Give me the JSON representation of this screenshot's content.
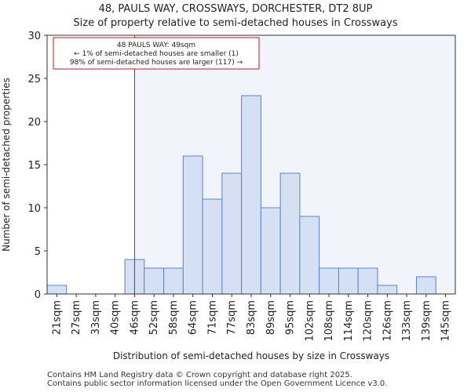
{
  "title": "48, PAULS WAY, CROSSWAYS, DORCHESTER, DT2 8UP",
  "subtitle": "Size of property relative to semi-detached houses in Crossways",
  "footer": {
    "line1": "Contains HM Land Registry data © Crown copyright and database right 2025.",
    "line2": "Contains public sector information licensed under the Open Government Licence v3.0."
  },
  "colors": {
    "bar_fill": "#d6e0f4",
    "bar_stroke": "#5a83c8",
    "highlight_line": "#aa2222",
    "highlight_region": "#f2f4fb"
  },
  "chart_data": {
    "type": "bar",
    "title": "48, PAULS WAY, CROSSWAYS, DORCHESTER, DT2 8UP",
    "subtitle": "Size of property relative to semi-detached houses in Crossways",
    "xlabel": "Distribution of semi-detached houses by size in Crossways",
    "ylabel": "Number of semi-detached properties",
    "categories": [
      "21sqm",
      "27sqm",
      "33sqm",
      "40sqm",
      "46sqm",
      "52sqm",
      "58sqm",
      "64sqm",
      "71sqm",
      "77sqm",
      "83sqm",
      "89sqm",
      "95sqm",
      "102sqm",
      "108sqm",
      "114sqm",
      "120sqm",
      "126sqm",
      "133sqm",
      "139sqm",
      "145sqm"
    ],
    "values": [
      1,
      0,
      0,
      0,
      4,
      3,
      3,
      16,
      11,
      14,
      23,
      10,
      14,
      9,
      3,
      3,
      3,
      1,
      0,
      2,
      0
    ],
    "ylim": [
      0,
      30
    ],
    "yticks": [
      0,
      5,
      10,
      15,
      20,
      25,
      30
    ],
    "grid": false,
    "marker": {
      "bin_position": 4.5,
      "label": "48 PAULS WAY: 49sqm",
      "line2": "← 1% of semi-detached houses are smaller (1)",
      "line3": "98% of semi-detached houses are larger (117) →"
    }
  }
}
